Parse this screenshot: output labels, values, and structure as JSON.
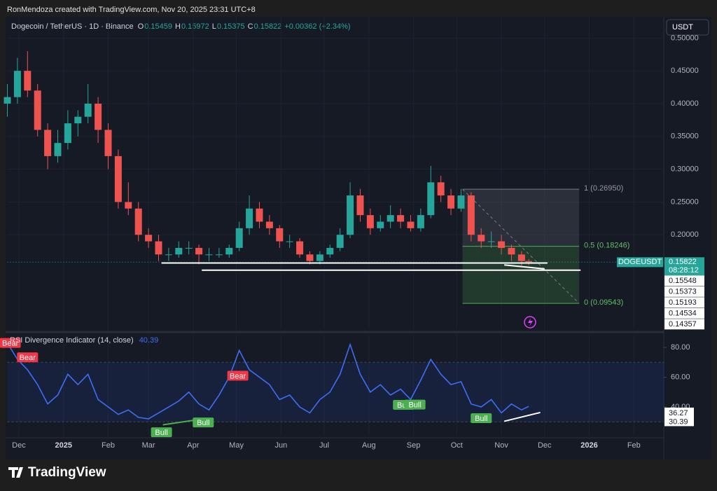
{
  "header": {
    "attribution": "RonMendoza created with TradingView.com, Nov 20, 2025 23:31 UTC+8",
    "symbol": "Dogecoin / TetherUS · 1D · Binance",
    "ohlc": [
      {
        "key": "O",
        "value": "0.15459"
      },
      {
        "key": "H",
        "value": "0.15972"
      },
      {
        "key": "L",
        "value": "0.15375"
      },
      {
        "key": "C",
        "value": "0.15822"
      }
    ],
    "change": "+0.00362 (+2.34%)"
  },
  "currency_button": "USDT",
  "price_tag": {
    "symbol": "DOGEUSDT",
    "countdown": "08:28:12"
  },
  "price_labels": [
    "0.15548",
    "0.15373",
    "0.15193",
    "0.14534",
    "0.14357"
  ],
  "footer": {
    "brand": "TradingView"
  },
  "chart_data": [
    {
      "type": "candlestick",
      "up_color": "#26a69a",
      "down_color": "#ef5350",
      "xlim": [
        0,
        456
      ],
      "ylim": [
        0.056,
        0.51
      ],
      "xticks": [
        {
          "value": 8,
          "label": "Dec"
        },
        {
          "value": 39,
          "label": "2025"
        },
        {
          "value": 70,
          "label": "Feb"
        },
        {
          "value": 98,
          "label": "Mar"
        },
        {
          "value": 129,
          "label": "Apr"
        },
        {
          "value": 159,
          "label": "May"
        },
        {
          "value": 190,
          "label": "Jun"
        },
        {
          "value": 220,
          "label": "Jul"
        },
        {
          "value": 251,
          "label": "Aug"
        },
        {
          "value": 282,
          "label": "Sep"
        },
        {
          "value": 312,
          "label": "Oct"
        },
        {
          "value": 343,
          "label": "Nov"
        },
        {
          "value": 373,
          "label": "Dec"
        },
        {
          "value": 404,
          "label": "2026"
        },
        {
          "value": 435,
          "label": "Feb"
        }
      ],
      "yticks": [
        {
          "value": 0.2,
          "label": "0.20000"
        },
        {
          "value": 0.25,
          "label": "0.25000"
        },
        {
          "value": 0.3,
          "label": "0.30000"
        },
        {
          "value": 0.35,
          "label": "0.35000"
        },
        {
          "value": 0.4,
          "label": "0.40000"
        },
        {
          "value": 0.45,
          "label": "0.45000"
        },
        {
          "value": 0.5,
          "label": "0.50000"
        }
      ],
      "grid": true,
      "x": [
        0,
        7,
        14,
        21,
        28,
        35,
        42,
        49,
        56,
        63,
        70,
        77,
        84,
        91,
        98,
        105,
        112,
        119,
        126,
        133,
        140,
        147,
        154,
        161,
        168,
        175,
        182,
        189,
        196,
        203,
        210,
        217,
        224,
        231,
        238,
        245,
        252,
        259,
        266,
        273,
        280,
        287,
        294,
        301,
        308,
        315,
        322,
        329,
        336,
        343,
        350,
        357,
        362
      ],
      "open": [
        0.4,
        0.41,
        0.45,
        0.42,
        0.36,
        0.32,
        0.34,
        0.37,
        0.38,
        0.4,
        0.36,
        0.32,
        0.25,
        0.24,
        0.2,
        0.19,
        0.17,
        0.17,
        0.18,
        0.18,
        0.17,
        0.17,
        0.17,
        0.18,
        0.21,
        0.24,
        0.22,
        0.21,
        0.19,
        0.19,
        0.17,
        0.16,
        0.17,
        0.18,
        0.2,
        0.26,
        0.23,
        0.21,
        0.22,
        0.23,
        0.22,
        0.21,
        0.23,
        0.28,
        0.26,
        0.24,
        0.26,
        0.2,
        0.19,
        0.19,
        0.18,
        0.17,
        0.16
      ],
      "high": [
        0.43,
        0.47,
        0.48,
        0.43,
        0.37,
        0.36,
        0.39,
        0.39,
        0.43,
        0.41,
        0.37,
        0.33,
        0.28,
        0.25,
        0.21,
        0.2,
        0.18,
        0.19,
        0.19,
        0.185,
        0.18,
        0.18,
        0.185,
        0.22,
        0.26,
        0.25,
        0.23,
        0.215,
        0.2,
        0.195,
        0.175,
        0.175,
        0.185,
        0.21,
        0.28,
        0.27,
        0.24,
        0.23,
        0.245,
        0.24,
        0.23,
        0.24,
        0.305,
        0.29,
        0.27,
        0.27,
        0.265,
        0.21,
        0.205,
        0.2,
        0.185,
        0.175,
        0.163
      ],
      "low": [
        0.38,
        0.4,
        0.41,
        0.35,
        0.3,
        0.31,
        0.33,
        0.35,
        0.37,
        0.34,
        0.3,
        0.24,
        0.23,
        0.19,
        0.18,
        0.16,
        0.16,
        0.165,
        0.17,
        0.155,
        0.16,
        0.165,
        0.165,
        0.175,
        0.2,
        0.21,
        0.2,
        0.18,
        0.18,
        0.165,
        0.155,
        0.155,
        0.165,
        0.175,
        0.195,
        0.22,
        0.2,
        0.205,
        0.21,
        0.21,
        0.205,
        0.205,
        0.225,
        0.25,
        0.23,
        0.235,
        0.19,
        0.18,
        0.18,
        0.17,
        0.16,
        0.153,
        0.1537
      ],
      "close": [
        0.41,
        0.45,
        0.42,
        0.36,
        0.32,
        0.34,
        0.37,
        0.38,
        0.4,
        0.36,
        0.32,
        0.25,
        0.24,
        0.2,
        0.19,
        0.17,
        0.17,
        0.18,
        0.18,
        0.17,
        0.17,
        0.17,
        0.18,
        0.21,
        0.24,
        0.22,
        0.21,
        0.19,
        0.19,
        0.17,
        0.16,
        0.17,
        0.18,
        0.2,
        0.26,
        0.23,
        0.21,
        0.22,
        0.23,
        0.22,
        0.21,
        0.23,
        0.28,
        0.26,
        0.24,
        0.26,
        0.2,
        0.19,
        0.19,
        0.18,
        0.17,
        0.16,
        0.1582
      ],
      "last_price": 0.15822,
      "lines": [
        {
          "x": [
            107,
            375
          ],
          "y": [
            0.157,
            0.157
          ],
          "color": "#ffffff"
        },
        {
          "x": [
            135,
            398
          ],
          "y": [
            0.146,
            0.146
          ],
          "color": "#ffffff"
        },
        {
          "x": [
            345,
            373
          ],
          "y": [
            0.154,
            0.148
          ],
          "color": "#ffffff"
        }
      ],
      "fib": {
        "x": [
          316,
          397
        ],
        "levels": [
          {
            "price": 0.2695,
            "label": "1 (0.26950)"
          },
          {
            "price": 0.18246,
            "label": "0.5 (0.18246)"
          },
          {
            "price": 0.09543,
            "label": "0 (0.09543)"
          }
        ]
      }
    },
    {
      "type": "line",
      "title": "RSI Divergence Indicator (14, close)",
      "value_text": "40.39",
      "color": "#3d6ef5",
      "xlim": [
        0,
        456
      ],
      "ylim": [
        20.7,
        88.5
      ],
      "yticks": [
        {
          "value": 40,
          "label": "40.00"
        },
        {
          "value": 60,
          "label": "60.00"
        },
        {
          "value": 80,
          "label": "80.00"
        }
      ],
      "band": [
        30,
        70
      ],
      "x": [
        0,
        7,
        14,
        21,
        28,
        35,
        42,
        49,
        56,
        63,
        70,
        77,
        84,
        91,
        98,
        105,
        112,
        119,
        126,
        133,
        140,
        147,
        154,
        161,
        168,
        175,
        182,
        189,
        196,
        203,
        210,
        217,
        224,
        231,
        238,
        245,
        252,
        259,
        266,
        273,
        280,
        287,
        294,
        301,
        308,
        315,
        322,
        329,
        336,
        343,
        350,
        357,
        362
      ],
      "values": [
        83,
        72,
        65,
        55,
        42,
        48,
        62,
        55,
        62,
        45,
        40,
        35,
        38,
        33,
        32,
        36,
        40,
        44,
        50,
        42,
        38,
        48,
        60,
        78,
        65,
        60,
        55,
        45,
        48,
        40,
        36,
        45,
        50,
        62,
        82,
        62,
        50,
        55,
        48,
        52,
        45,
        58,
        72,
        62,
        55,
        57,
        42,
        40,
        45,
        36,
        42,
        38,
        40.39
      ],
      "divergence_lines": [
        {
          "x": [
            108,
            136
          ],
          "y": [
            28,
            32
          ],
          "color": "#4caf50"
        },
        {
          "x": [
            345,
            370
          ],
          "y": [
            30.39,
            36.27
          ],
          "color": "#ffffff"
        }
      ],
      "signals": [
        {
          "label": "Bear",
          "x": 2,
          "value": 83
        },
        {
          "label": "Bear",
          "x": 14,
          "value": 73.4
        },
        {
          "label": "Bear",
          "x": 160,
          "value": 61
        },
        {
          "label": "Bull",
          "x": 107,
          "value": 23
        },
        {
          "label": "Bull",
          "x": 136,
          "value": 29.6
        },
        {
          "label": "Bull",
          "x": 275,
          "value": 41.4
        },
        {
          "label": "Bull",
          "x": 283,
          "value": 41.6
        },
        {
          "label": "Bull",
          "x": 329,
          "value": 32.5
        }
      ]
    }
  ]
}
